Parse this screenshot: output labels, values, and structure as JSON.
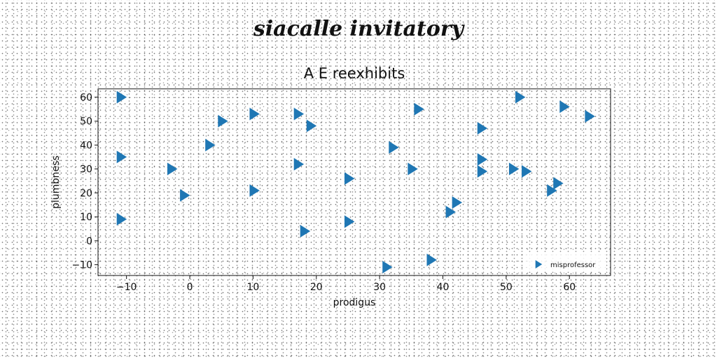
{
  "suptitle": "siacalle invitatory",
  "chart_data": {
    "type": "scatter",
    "title": "A E reexhibits",
    "xlabel": "prodigus",
    "ylabel": "plumbness",
    "xlim": [
      -14.5,
      66.5
    ],
    "ylim": [
      -14.5,
      63.5
    ],
    "xticks": [
      -10,
      0,
      10,
      20,
      30,
      40,
      50,
      60
    ],
    "yticks": [
      -10,
      0,
      10,
      20,
      30,
      40,
      50,
      60
    ],
    "marker": "triangle-right",
    "grid": false,
    "legend_position": "lower-right",
    "series": [
      {
        "name": "misprofessor",
        "color": "#1f77b4",
        "points": [
          [
            -11,
            60
          ],
          [
            -11,
            35
          ],
          [
            -11,
            9
          ],
          [
            -3,
            30
          ],
          [
            -1,
            19
          ],
          [
            3,
            40
          ],
          [
            5,
            50
          ],
          [
            10,
            53
          ],
          [
            10,
            21
          ],
          [
            17,
            53
          ],
          [
            17,
            32
          ],
          [
            18,
            4
          ],
          [
            19,
            48
          ],
          [
            25,
            26
          ],
          [
            25,
            8
          ],
          [
            31,
            -11
          ],
          [
            32,
            39
          ],
          [
            35,
            30
          ],
          [
            36,
            55
          ],
          [
            38,
            -8
          ],
          [
            41,
            12
          ],
          [
            42,
            16
          ],
          [
            46,
            47
          ],
          [
            46,
            34
          ],
          [
            46,
            29
          ],
          [
            51,
            30
          ],
          [
            53,
            29
          ],
          [
            52,
            60
          ],
          [
            57,
            21
          ],
          [
            58,
            24
          ],
          [
            59,
            56
          ],
          [
            63,
            52
          ]
        ]
      }
    ]
  }
}
